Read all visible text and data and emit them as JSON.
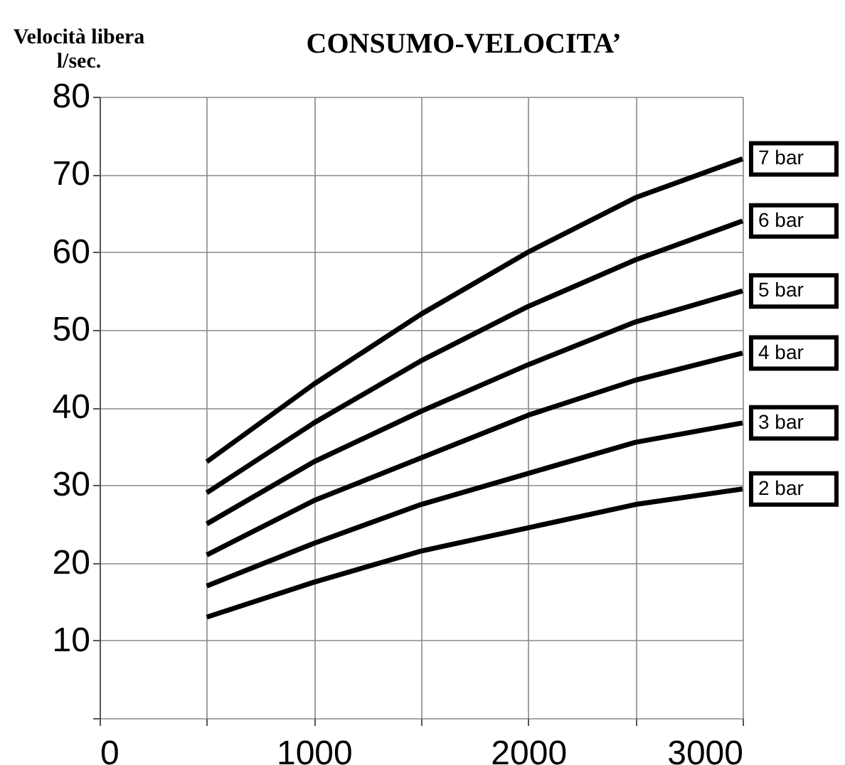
{
  "chart_data": {
    "type": "line",
    "title": "CONSUMO-VELOCITA’",
    "ylabel": "Velocità libera\nl/sec.",
    "x": [
      500,
      1000,
      1500,
      2000,
      2500,
      3000
    ],
    "series": [
      {
        "name": "7 bar",
        "color": "#000000",
        "values": [
          33,
          43,
          52,
          60,
          67,
          72
        ]
      },
      {
        "name": "6 bar",
        "color": "#000000",
        "values": [
          29,
          38,
          46,
          53,
          59,
          64
        ]
      },
      {
        "name": "5 bar",
        "color": "#000000",
        "values": [
          25,
          33,
          39.5,
          45.5,
          51,
          55
        ]
      },
      {
        "name": "4 bar",
        "color": "#000000",
        "values": [
          21,
          28,
          33.5,
          39,
          43.5,
          47
        ]
      },
      {
        "name": "3 bar",
        "color": "#000000",
        "values": [
          17,
          22.5,
          27.5,
          31.5,
          35.5,
          38
        ]
      },
      {
        "name": "2 bar",
        "color": "#000000",
        "values": [
          13,
          17.5,
          21.5,
          24.5,
          27.5,
          29.5
        ]
      }
    ],
    "xlim": [
      0,
      3000
    ],
    "xticks": [
      0,
      {
        "value": 500,
        "label": null
      },
      1000,
      {
        "value": 1500,
        "label": null
      },
      2000,
      {
        "value": 2500,
        "label": null
      },
      3000
    ],
    "ylim": [
      0,
      80
    ],
    "yticks": [
      {
        "value": 0,
        "label": null
      },
      10,
      20,
      30,
      40,
      50,
      60,
      70,
      80
    ],
    "grid": true,
    "legend": false,
    "marker": "none",
    "line_style": "solid"
  }
}
